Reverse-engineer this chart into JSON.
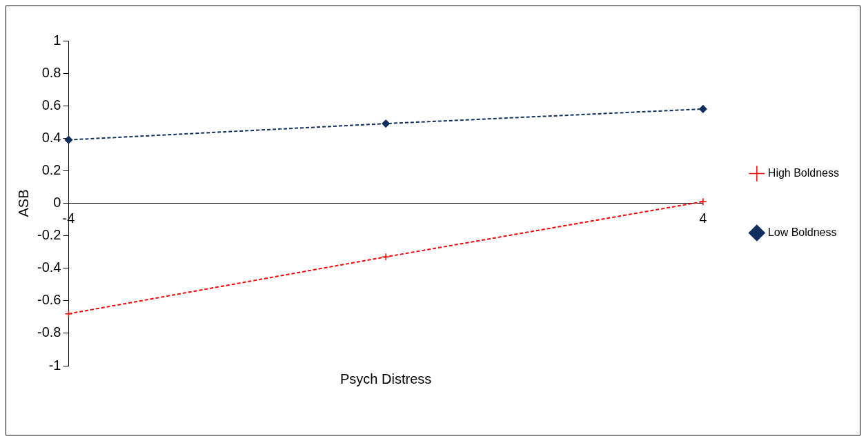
{
  "chart_data": {
    "type": "line",
    "xlabel": "Psych Distress",
    "ylabel": "ASB",
    "categories": [
      "-4",
      null,
      "4"
    ],
    "series": [
      {
        "name": "High Boldness",
        "color": "#ff0000",
        "values": [
          -0.68,
          -0.33,
          0.01
        ],
        "marker": "cross"
      },
      {
        "name": "Low Boldness",
        "color": "#0f2f5f",
        "values": [
          0.39,
          0.49,
          0.58
        ],
        "marker": "diamond"
      }
    ],
    "ylim": [
      -1,
      1
    ],
    "yticks": [
      -1,
      -0.8,
      -0.6,
      -0.4,
      -0.2,
      0,
      0.2,
      0.4,
      0.6,
      0.8,
      1
    ],
    "grid": false,
    "legend": "right",
    "line_style": "dashed"
  }
}
